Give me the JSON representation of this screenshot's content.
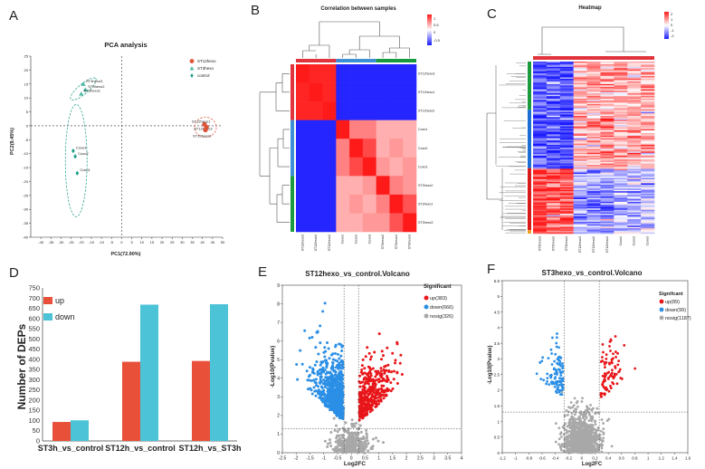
{
  "panels": {
    "A": {
      "letter": "A",
      "title": "PCA analysis",
      "xlabel": "PC1(72.90%)",
      "ylabel": "PC2(9.45%)",
      "xlim": [
        -45,
        50
      ],
      "ylim": [
        -40,
        25
      ],
      "xticks": [
        -40,
        -35,
        -30,
        -25,
        -20,
        -15,
        -10,
        -5,
        0,
        5,
        10,
        15,
        20,
        25,
        30,
        35,
        40,
        45,
        50
      ],
      "yticks": [
        -40,
        -35,
        -30,
        -25,
        -20,
        -15,
        -10,
        -5,
        0,
        5,
        10,
        15,
        20,
        25
      ],
      "legend": [
        "ST12hexo",
        "ST3hexo",
        "control"
      ],
      "colors": [
        "#e0533b",
        "#4fb8a6",
        "#1a9c86"
      ],
      "points": [
        {
          "label": "ST12hexo1",
          "group": 0,
          "x": 41,
          "y": 0.5
        },
        {
          "label": "ST12hexo3",
          "group": 0,
          "x": 42,
          "y": -0.5
        },
        {
          "label": "ST12hexo2",
          "group": 0,
          "x": 41.5,
          "y": -1.5
        },
        {
          "label": "ST3hexo3",
          "group": 1,
          "x": -19,
          "y": 15
        },
        {
          "label": "ST3hexo2",
          "group": 1,
          "x": -18,
          "y": 13
        },
        {
          "label": "ST3hexo1",
          "group": 1,
          "x": -20,
          "y": 11.5
        },
        {
          "label": "Coxo3",
          "group": 2,
          "x": -24,
          "y": -9
        },
        {
          "label": "Coxo2",
          "group": 2,
          "x": -23,
          "y": -11
        },
        {
          "label": "Coxo1",
          "group": 2,
          "x": -22,
          "y": -17
        }
      ]
    },
    "B": {
      "letter": "B",
      "title": "Correlation between samples",
      "rows": [
        "ST12hexo3",
        "ST12hexo1",
        "ST12hexo2",
        "Coxo1",
        "Coxo2",
        "Coxo3",
        "ST3hexo2",
        "ST3hexo1",
        "ST3hexo3"
      ],
      "cols": [
        "ST12hexo3",
        "ST12hexo1",
        "ST12hexo2",
        "Coxo1",
        "Coxo2",
        "Coxo3",
        "ST3hexo2",
        "ST3hexo1",
        "ST3hexo3"
      ],
      "legend_ticks": [
        "1",
        "0.5",
        "0",
        "-0.5"
      ],
      "colors": {
        "high": "#ff1a1a",
        "low": "#1a1aff"
      },
      "matrix": [
        [
          1.0,
          0.95,
          0.95,
          -0.95,
          -0.95,
          -0.95,
          -0.95,
          -0.95,
          -0.95
        ],
        [
          0.95,
          1.0,
          0.95,
          -0.95,
          -0.95,
          -0.95,
          -0.95,
          -0.95,
          -0.95
        ],
        [
          0.95,
          0.95,
          1.0,
          -0.95,
          -0.95,
          -0.95,
          -0.95,
          -0.95,
          -0.95
        ],
        [
          -0.95,
          -0.95,
          -0.95,
          1.0,
          0.55,
          0.55,
          0.35,
          0.35,
          0.35
        ],
        [
          -0.95,
          -0.95,
          -0.95,
          0.55,
          1.0,
          0.8,
          0.35,
          0.45,
          0.35
        ],
        [
          -0.95,
          -0.95,
          -0.95,
          0.55,
          0.8,
          1.0,
          0.45,
          0.35,
          0.45
        ],
        [
          -0.95,
          -0.95,
          -0.95,
          0.35,
          0.35,
          0.45,
          1.0,
          0.55,
          0.45
        ],
        [
          -0.95,
          -0.95,
          -0.95,
          0.35,
          0.45,
          0.35,
          0.55,
          1.0,
          0.75
        ],
        [
          -0.95,
          -0.95,
          -0.95,
          0.35,
          0.35,
          0.45,
          0.45,
          0.75,
          1.0
        ]
      ]
    },
    "C": {
      "letter": "C",
      "title": "Heatmap",
      "cols": [
        "ST3hexo3",
        "ST3hexo2",
        "ST3hexo1",
        "ST12hexo3",
        "ST12hexo2",
        "ST12hexo1",
        "Coxo1",
        "Coxo2",
        "Coxo3"
      ],
      "legend_ticks": [
        "2",
        "1",
        "0",
        "-1",
        "-2"
      ],
      "colors": {
        "high": "#ff1a1a",
        "low": "#1a1aff"
      }
    },
    "D": {
      "letter": "D",
      "ylabel": "Number of DEPs",
      "categories": [
        "ST3h_vs_control",
        "ST12h_vs_control",
        "ST12h_vs_ST3h"
      ],
      "series": [
        {
          "name": "up",
          "color": "#e8503a",
          "values": [
            93,
            388,
            392
          ]
        },
        {
          "name": "down",
          "color": "#4dc3d8",
          "values": [
            101,
            668,
            670
          ]
        }
      ],
      "ylim": [
        0,
        750
      ],
      "yticks": [
        0,
        50,
        100,
        150,
        200,
        250,
        300,
        350,
        400,
        450,
        500,
        550,
        600,
        650,
        700,
        750
      ]
    },
    "E": {
      "letter": "E",
      "title": "ST12hexo_vs_control.Volcano",
      "xlabel": "Log2FC",
      "ylabel": "-Log10(Pvalue)",
      "xlim": [
        -2.5,
        4
      ],
      "ylim": [
        0,
        9
      ],
      "xticks": [
        -2.5,
        -2,
        -1.5,
        -1,
        -0.5,
        0,
        0.5,
        1,
        1.5,
        2,
        2.5,
        3,
        3.5,
        4
      ],
      "yticks": [
        0,
        1,
        2,
        3,
        4,
        5,
        6,
        7,
        8,
        9
      ],
      "legend_title": "Significant",
      "legend": [
        "up(383)",
        "down(666)",
        "nosig(326)"
      ],
      "colors": [
        "#e8161a",
        "#2b8fe6",
        "#a8a8a8"
      ],
      "counts": [
        383,
        666,
        326
      ],
      "thresholds": {
        "fc": 0.263,
        "p": 1.3
      }
    },
    "F": {
      "letter": "F",
      "title": "ST3hexo_vs_control.Volcano",
      "xlabel": "Log2FC",
      "ylabel": "-Log10(Pvalue)",
      "xlim": [
        -1.2,
        1.6
      ],
      "ylim": [
        0,
        5.5
      ],
      "xticks": [
        -1.2,
        -1,
        -0.8,
        -0.6,
        -0.4,
        -0.2,
        0,
        0.2,
        0.4,
        0.6,
        0.8,
        1,
        1.2,
        1.4,
        1.6
      ],
      "yticks": [
        0,
        0.5,
        1,
        1.5,
        2,
        2.5,
        3,
        3.5,
        4,
        4.5,
        5,
        5.5
      ],
      "legend_title": "Signifcant",
      "legend": [
        "up(89)",
        "down(99)",
        "nosig(1187)"
      ],
      "colors": [
        "#e8161a",
        "#2b8fe6",
        "#a8a8a8"
      ],
      "counts": [
        89,
        99,
        1187
      ],
      "thresholds": {
        "fc": 0.263,
        "p": 1.3
      }
    }
  },
  "chart_data": [
    {
      "type": "scatter",
      "title": "PCA analysis",
      "xlabel": "PC1(72.90%)",
      "ylabel": "PC2(9.45%)",
      "xlim": [
        -45,
        50
      ],
      "ylim": [
        -40,
        25
      ],
      "series": [
        {
          "name": "ST12hexo",
          "x": [
            41,
            42,
            41.5
          ],
          "y": [
            0.5,
            -0.5,
            -1.5
          ]
        },
        {
          "name": "ST3hexo",
          "x": [
            -19,
            -18,
            -20
          ],
          "y": [
            15,
            13,
            11.5
          ]
        },
        {
          "name": "control",
          "x": [
            -24,
            -23,
            -22
          ],
          "y": [
            -9,
            -11,
            -17
          ]
        }
      ]
    },
    {
      "type": "heatmap",
      "title": "Correlation between samples",
      "rows": [
        "ST12hexo3",
        "ST12hexo1",
        "ST12hexo2",
        "Coxo1",
        "Coxo2",
        "Coxo3",
        "ST3hexo2",
        "ST3hexo1",
        "ST3hexo3"
      ],
      "cols": [
        "ST12hexo3",
        "ST12hexo1",
        "ST12hexo2",
        "Coxo1",
        "Coxo2",
        "Coxo3",
        "ST3hexo2",
        "ST3hexo1",
        "ST3hexo3"
      ],
      "color_range": [
        -1,
        1
      ]
    },
    {
      "type": "heatmap",
      "title": "Heatmap",
      "cols": [
        "ST3hexo3",
        "ST3hexo2",
        "ST3hexo1",
        "ST12hexo3",
        "ST12hexo2",
        "ST12hexo1",
        "Coxo1",
        "Coxo2",
        "Coxo3"
      ],
      "color_range": [
        -2,
        2
      ]
    },
    {
      "type": "bar",
      "title": "",
      "xlabel": "",
      "ylabel": "Number of DEPs",
      "categories": [
        "ST3h_vs_control",
        "ST12h_vs_control",
        "ST12h_vs_ST3h"
      ],
      "series": [
        {
          "name": "up",
          "values": [
            93,
            388,
            392
          ]
        },
        {
          "name": "down",
          "values": [
            101,
            668,
            670
          ]
        }
      ],
      "ylim": [
        0,
        750
      ]
    },
    {
      "type": "scatter",
      "title": "ST12hexo_vs_control.Volcano",
      "xlabel": "Log2FC",
      "ylabel": "-Log10(Pvalue)",
      "xlim": [
        -2.5,
        4
      ],
      "ylim": [
        0,
        9
      ],
      "series": [
        {
          "name": "up",
          "count": 383
        },
        {
          "name": "down",
          "count": 666
        },
        {
          "name": "nosig",
          "count": 326
        }
      ]
    },
    {
      "type": "scatter",
      "title": "ST3hexo_vs_control.Volcano",
      "xlabel": "Log2FC",
      "ylabel": "-Log10(Pvalue)",
      "xlim": [
        -1.2,
        1.6
      ],
      "ylim": [
        0,
        5.5
      ],
      "series": [
        {
          "name": "up",
          "count": 89
        },
        {
          "name": "down",
          "count": 99
        },
        {
          "name": "nosig",
          "count": 1187
        }
      ]
    }
  ]
}
